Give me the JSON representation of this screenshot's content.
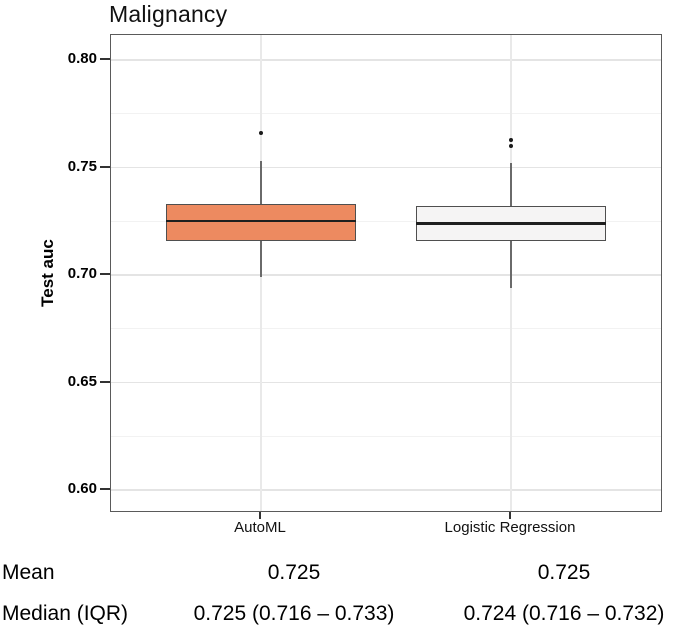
{
  "title": "Malignancy",
  "y_axis": {
    "label": "Test auc",
    "ticks": [
      {
        "label": "0.80",
        "value": 0.8
      },
      {
        "label": "0.75",
        "value": 0.75
      },
      {
        "label": "0.70",
        "value": 0.7
      },
      {
        "label": "0.65",
        "value": 0.65
      },
      {
        "label": "0.60",
        "value": 0.6
      }
    ],
    "minor_values": [
      0.775,
      0.725,
      0.675,
      0.625
    ]
  },
  "x_axis": {
    "categories": [
      "AutoML",
      "Logistic Regression"
    ]
  },
  "chart_data": {
    "type": "boxplot",
    "title": "Malignancy",
    "ylabel": "Test auc",
    "ylim": [
      0.589,
      0.812
    ],
    "grid": "on",
    "categories": [
      "AutoML",
      "Logistic Regression"
    ],
    "series": [
      {
        "name": "AutoML",
        "fill_color": "#ED8A60",
        "whisker_low": 0.699,
        "q1": 0.716,
        "median": 0.725,
        "q3": 0.733,
        "whisker_high": 0.753,
        "outliers": [
          0.766
        ],
        "mean": 0.725
      },
      {
        "name": "Logistic Regression",
        "fill_color": "#F5F4F4",
        "whisker_low": 0.694,
        "q1": 0.716,
        "median": 0.724,
        "q3": 0.732,
        "whisker_high": 0.752,
        "outliers": [
          0.763,
          0.76
        ],
        "mean": 0.725
      }
    ]
  },
  "stats_table": {
    "rows": [
      {
        "label": "Mean",
        "values": [
          "0.725",
          "0.725"
        ]
      },
      {
        "label": "Median (IQR)",
        "values": [
          "0.725 (0.716 – 0.733)",
          "0.724 (0.716 – 0.732)"
        ]
      }
    ]
  },
  "colors": {
    "automl_fill": "#ED8A60",
    "logreg_fill": "#F5F4F4",
    "box_border": "#4f4f4f",
    "median_line": "#1f1f1f",
    "whisker": "#6a6a6a",
    "panel_border": "#5a5a5a",
    "grid_major": "#e4e4e4",
    "grid_minor": "#f2f2f2",
    "outlier": "#1a1a1a",
    "text": "#000000"
  }
}
